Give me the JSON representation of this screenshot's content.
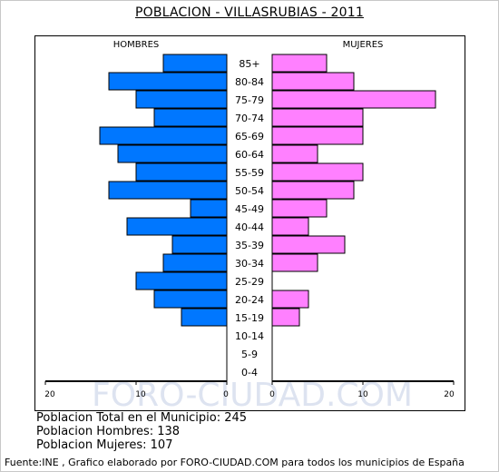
{
  "title": "POBLACION - VILLASRUBIAS - 2011",
  "left_label": "HOMBRES",
  "right_label": "MUJERES",
  "watermark": "FORO-CIUDAD.COM",
  "colors": {
    "male": "#0077ff",
    "female": "#ff80ff",
    "axis": "#000000",
    "watermark": "#dde3f0"
  },
  "chart_data": {
    "type": "bar",
    "orientation": "horizontal",
    "subtype": "population-pyramid",
    "categories": [
      "85+",
      "80-84",
      "75-79",
      "70-74",
      "65-69",
      "60-64",
      "55-59",
      "50-54",
      "45-49",
      "40-44",
      "35-39",
      "30-34",
      "25-29",
      "20-24",
      "15-19",
      "10-14",
      "5-9",
      "0-4"
    ],
    "series": [
      {
        "name": "HOMBRES",
        "values": [
          7,
          13,
          10,
          8,
          14,
          12,
          10,
          13,
          4,
          11,
          6,
          7,
          10,
          8,
          5,
          0,
          0,
          0
        ]
      },
      {
        "name": "MUJERES",
        "values": [
          6,
          9,
          18,
          10,
          10,
          5,
          10,
          9,
          6,
          4,
          8,
          5,
          0,
          4,
          3,
          0,
          0,
          0
        ]
      }
    ],
    "xlim": [
      0,
      20
    ],
    "x_ticks_left": [
      "20",
      "10",
      "0"
    ],
    "x_ticks_right": [
      "0",
      "10",
      "20"
    ],
    "grid": false
  },
  "stats": {
    "total": "Poblacion Total en el Municipio: 245",
    "males": "Poblacion Hombres: 138",
    "females": "Poblacion Mujeres: 107"
  },
  "footer": "Fuente:INE , Grafico elaborado por FORO-CIUDAD.COM para todos los municipios de España"
}
